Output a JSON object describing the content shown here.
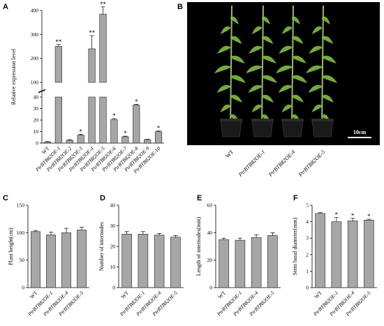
{
  "panels": {
    "A": {
      "letter": "A",
      "chart_data": {
        "type": "bar",
        "ylabel": "Relative expression level",
        "broken_axis": true,
        "segments": [
          {
            "range": [
              0,
              40
            ],
            "ticks": [
              0,
              10,
              20,
              30,
              40
            ]
          },
          {
            "range": [
              100,
              400
            ],
            "ticks": [
              100,
              200,
              300,
              400
            ]
          }
        ],
        "categories": [
          "WT",
          "PtrBTB82OE-1",
          "PtrBTB82OE-2",
          "PtrBTB82OE-3",
          "PtrBTB82OE-4",
          "PtrBTB82OE-5",
          "PtrBTB82OE-6",
          "PtrBTB82OE-7",
          "PtrBTB82OE-8",
          "PtrBTB82OE-9",
          "PtrBTB82OE-10"
        ],
        "values": [
          1,
          250,
          2.5,
          7,
          240,
          385,
          20.5,
          5.5,
          33,
          3,
          10
        ],
        "errors": [
          0.3,
          8,
          0.4,
          0.6,
          55,
          30,
          0.8,
          0.5,
          0.7,
          0.4,
          0.6
        ],
        "significance": [
          "",
          "**",
          "",
          "*",
          "**",
          "**",
          "*",
          "*",
          "*",
          "",
          "*"
        ]
      }
    },
    "B": {
      "letter": "B",
      "photo_labels": [
        "WT",
        "PtrBTB82OE-1",
        "PtrBTB82OE-4",
        "PtrBTB82OE-5"
      ],
      "scale_bar": "10cm"
    },
    "C": {
      "letter": "C",
      "chart_data": {
        "type": "bar",
        "ylabel": "Plant height(cm)",
        "ylim": [
          0,
          150
        ],
        "ticks": [
          0,
          50,
          100,
          150
        ],
        "categories": [
          "WT",
          "PtrBTB82OE-1",
          "PtrBTB82OE-4",
          "PtrBTB82OE-5"
        ],
        "values": [
          102,
          96,
          100,
          105
        ],
        "errors": [
          2,
          5,
          8,
          5
        ],
        "significance": [
          "",
          "",
          "",
          ""
        ]
      }
    },
    "D": {
      "letter": "D",
      "chart_data": {
        "type": "bar",
        "ylabel": "Number of internodes",
        "ylim": [
          0,
          40
        ],
        "ticks": [
          0,
          10,
          20,
          30,
          40
        ],
        "categories": [
          "WT",
          "PtrBTB82OE-1",
          "PtrBTB82OE-4",
          "PtrBTB82OE-5"
        ],
        "values": [
          26,
          26,
          25.5,
          24.5
        ],
        "errors": [
          1.2,
          1.2,
          0.8,
          0.8
        ],
        "significance": [
          "",
          "",
          "",
          ""
        ]
      }
    },
    "E": {
      "letter": "E",
      "chart_data": {
        "type": "bar",
        "ylabel": "Length of internodes(mm)",
        "ylim": [
          0,
          60
        ],
        "ticks": [
          0,
          20,
          40,
          60
        ],
        "categories": [
          "WT",
          "PtrBTB82OE-1",
          "PtrBTB82OE-4",
          "PtrBTB82OE-5"
        ],
        "values": [
          35,
          34.5,
          36.5,
          38
        ],
        "errors": [
          1,
          1.5,
          2,
          2
        ],
        "significance": [
          "",
          "",
          "",
          ""
        ]
      }
    },
    "F": {
      "letter": "F",
      "chart_data": {
        "type": "bar",
        "ylabel": "Stem basal diameter(mm)",
        "ylim": [
          0,
          5
        ],
        "ticks": [
          0,
          1,
          2,
          3,
          4,
          5
        ],
        "categories": [
          "WT",
          "PtrBTB82OE-1",
          "PtrBTB82OE-4",
          "PtrBTB82OE-5"
        ],
        "values": [
          4.5,
          4,
          4.05,
          4.1
        ],
        "errors": [
          0.05,
          0.25,
          0.15,
          0.05
        ],
        "significance": [
          "",
          "*",
          "*",
          "*"
        ]
      }
    }
  },
  "colors": {
    "bar_fill": "#a6a6a6",
    "photo_background": "#000000",
    "leaf": "#7fbf3a"
  }
}
